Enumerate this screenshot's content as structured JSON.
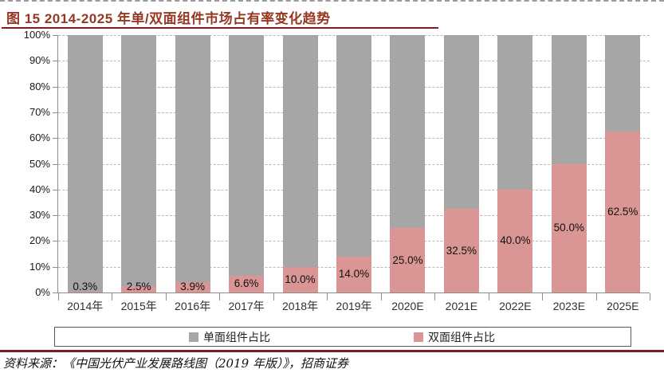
{
  "title": "图 15 2014-2025 年单/双面组件市场占有率变化趋势",
  "source": "资料来源：《中国光伏产业发展路线图（2019 年版）》，招商证券",
  "colors": {
    "single": "#a6a6a6",
    "bifacial": "#d99694",
    "title_text": "#963821",
    "rule": "#7a1f1f",
    "grid": "#b8b8b8",
    "axis": "#8c8c8c"
  },
  "legend": [
    {
      "label": "单面组件占比",
      "color_key": "single"
    },
    {
      "label": "双面组件占比",
      "color_key": "bifacial"
    }
  ],
  "chart_data": {
    "type": "bar",
    "stacked": true,
    "title": "图 15 2014-2025 年单/双面组件市场占有率变化趋势",
    "categories": [
      "2014年",
      "2015年",
      "2016年",
      "2017年",
      "2018年",
      "2019年",
      "2020E",
      "2021E",
      "2022E",
      "2023E",
      "2025E"
    ],
    "series": [
      {
        "name": "单面组件占比",
        "color": "#a6a6a6",
        "values": [
          99.7,
          97.5,
          96.1,
          93.4,
          90.0,
          86.0,
          75.0,
          67.5,
          60.0,
          50.0,
          37.5
        ]
      },
      {
        "name": "双面组件占比",
        "color": "#d99694",
        "values": [
          0.3,
          2.5,
          3.9,
          6.6,
          10.0,
          14.0,
          25.0,
          32.5,
          40.0,
          50.0,
          62.5
        ]
      }
    ],
    "data_labels": [
      "0.3%",
      "2.5%",
      "3.9%",
      "6.6%",
      "10.0%",
      "14.0%",
      "25.0%",
      "32.5%",
      "40.0%",
      "50.0%",
      "62.5%"
    ],
    "y_tick_labels": [
      "0%",
      "10%",
      "20%",
      "30%",
      "40%",
      "50%",
      "60%",
      "70%",
      "80%",
      "90%",
      "100%"
    ],
    "ylim": [
      0,
      100
    ],
    "grid": true,
    "legend_position": "bottom"
  }
}
